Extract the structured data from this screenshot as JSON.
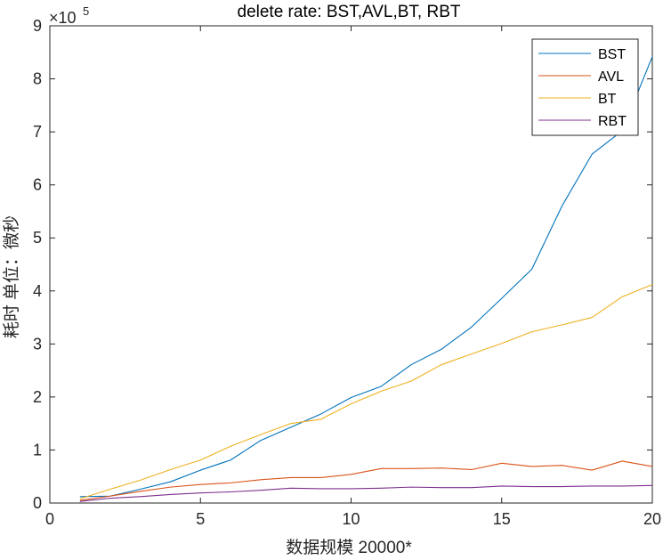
{
  "chart_data": {
    "type": "line",
    "title": "delete rate: BST,AVL,BT, RBT",
    "xlabel": "数据规模 20000*",
    "ylabel": "耗时 单位：微秒",
    "exponent_base": "×10",
    "exponent_power": "5",
    "xlim": [
      0,
      20
    ],
    "ylim": [
      0,
      900000
    ],
    "xticks": [
      0,
      5,
      10,
      15,
      20
    ],
    "yticks": [
      0,
      100000,
      200000,
      300000,
      400000,
      500000,
      600000,
      700000,
      800000,
      900000
    ],
    "xtick_labels": [
      "0",
      "5",
      "10",
      "15",
      "20"
    ],
    "ytick_labels": [
      "0",
      "1",
      "2",
      "3",
      "4",
      "5",
      "6",
      "7",
      "8",
      "9"
    ],
    "grid": false,
    "legend_position": "top-right",
    "x": [
      1,
      2,
      3,
      4,
      5,
      6,
      7,
      8,
      9,
      10,
      11,
      12,
      13,
      14,
      15,
      16,
      17,
      18,
      19,
      20
    ],
    "series": [
      {
        "name": "BST",
        "color": "#0072BD",
        "values": [
          12000,
          13000,
          26000,
          40000,
          62000,
          81000,
          118000,
          143000,
          168000,
          199000,
          220000,
          261000,
          290000,
          332000,
          386000,
          441000,
          560000,
          658000,
          702000,
          842000
        ]
      },
      {
        "name": "AVL",
        "color": "#D95319",
        "values": [
          5000,
          13000,
          22000,
          30000,
          35000,
          38000,
          44000,
          48000,
          48000,
          54000,
          65000,
          65000,
          66000,
          63000,
          75000,
          69000,
          71000,
          62000,
          79000,
          69000
        ]
      },
      {
        "name": "BT",
        "color": "#EDB120",
        "values": [
          8000,
          26000,
          43000,
          63000,
          81000,
          107000,
          129000,
          150000,
          158000,
          187000,
          211000,
          230000,
          261000,
          281000,
          301000,
          323000,
          336000,
          350000,
          389000,
          412000
        ]
      },
      {
        "name": "RBT",
        "color": "#7E2F8E",
        "values": [
          3000,
          9000,
          12000,
          16000,
          19000,
          21000,
          24000,
          28000,
          27000,
          27000,
          28000,
          30000,
          29000,
          29000,
          32000,
          31000,
          31000,
          32000,
          32000,
          33000
        ]
      }
    ]
  }
}
